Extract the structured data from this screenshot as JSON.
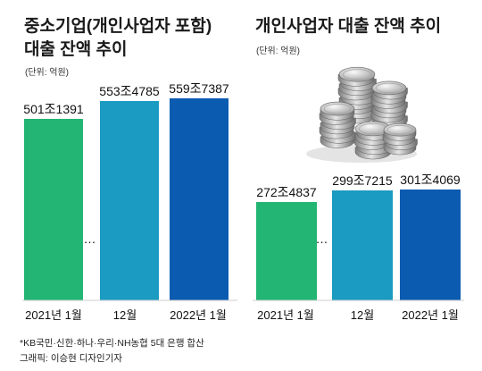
{
  "chart_data": [
    {
      "type": "bar",
      "title_line1": "중소기업(개인사업자 포함)",
      "title_line2": "대출 잔액 추이",
      "unit": "(단위: 억원)",
      "categories": [
        "2021년 1월",
        "12월",
        "2022년 1월"
      ],
      "values": [
        5011391,
        5534785,
        5597387
      ],
      "value_labels": [
        "501조1391",
        "553조4785",
        "559조7387"
      ],
      "gap_marker": "…",
      "colors": [
        "#22b573",
        "#1b9bc1",
        "#0b5bb0"
      ]
    },
    {
      "type": "bar",
      "title_line1": "개인사업자 대출 잔액 추이",
      "unit": "(단위: 억원)",
      "categories": [
        "2021년 1월",
        "12월",
        "2022년 1월"
      ],
      "values": [
        2724837,
        2997215,
        3014069
      ],
      "value_labels": [
        "272조4837",
        "299조7215",
        "301조4069"
      ],
      "gap_marker": "…",
      "colors": [
        "#22b573",
        "#1b9bc1",
        "#0b5bb0"
      ]
    }
  ],
  "footnote": {
    "source": "*KB국민·신한·하나·우리·NH농협 5대 은행 합산",
    "credit": "그래픽: 이승현 디자인기자"
  },
  "decoration": {
    "coins_icon": "coin-stack-icon"
  }
}
